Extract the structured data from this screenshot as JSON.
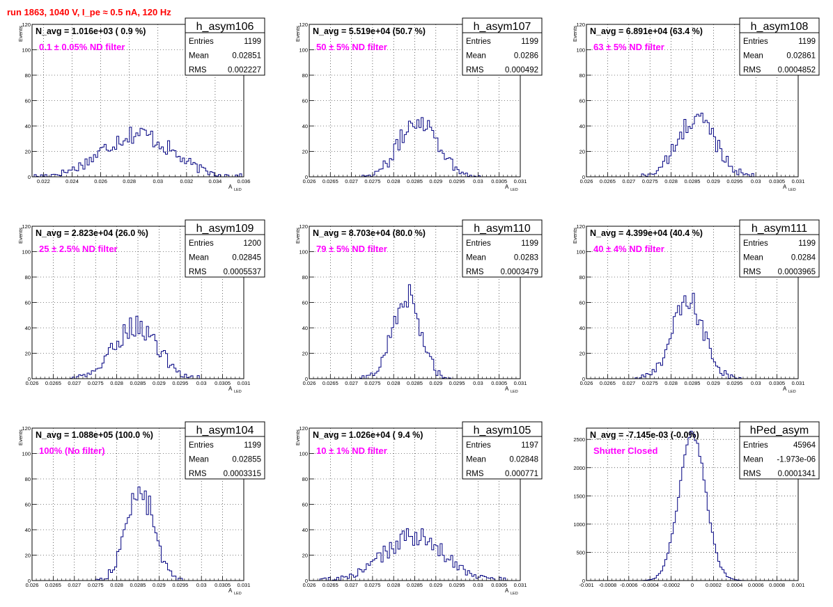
{
  "header": {
    "run_title": "run 1863,  1040 V, I_pe ≈ 0.5 nA, 120 Hz"
  },
  "colors": {
    "hist": "#000080",
    "annotation": "#ff00ff",
    "title": "#ff0000",
    "grid": "#000000"
  },
  "chart_data": [
    {
      "type": "histogram",
      "hist_name": "h_asym106",
      "navg": "N_avg = 1.016e+03 ( 0.9 %)",
      "filter": "0.1 ± 0.05% ND filter",
      "stats": [
        {
          "label": "Entries",
          "value": "1199"
        },
        {
          "label": "Mean",
          "value": "0.02851"
        },
        {
          "label": "RMS",
          "value": "0.002227"
        }
      ],
      "xlabel": "A",
      "xlabel_sub": "LED",
      "ylabel": "Events",
      "xlim": [
        0.0212,
        0.036
      ],
      "ylim": [
        0,
        120
      ],
      "xticks": [
        0.022,
        0.024,
        0.026,
        0.028,
        0.03,
        0.032,
        0.034,
        0.036
      ],
      "xtick_labels": [
        "0.022",
        "0.024",
        "0.026",
        "0.028",
        "0.03",
        "0.032",
        "0.034",
        "0.036"
      ],
      "yticks": [
        20,
        40,
        60,
        80,
        100,
        120
      ],
      "ytick_labels": [
        "20",
        "40",
        "60",
        "80",
        "100",
        "120"
      ],
      "dist": {
        "mean": 0.02851,
        "sd": 0.0024,
        "peak": 34
      },
      "grid": true
    },
    {
      "type": "histogram",
      "hist_name": "h_asym107",
      "navg": "N_avg = 5.519e+04 (50.7 %)",
      "filter": "50 ± 5% ND filter",
      "stats": [
        {
          "label": "Entries",
          "value": "1199"
        },
        {
          "label": "Mean",
          "value": "0.0286"
        },
        {
          "label": "RMS",
          "value": "0.000492"
        }
      ],
      "xlabel": "A",
      "xlabel_sub": "LED",
      "ylabel": "Events",
      "xlim": [
        0.026,
        0.031
      ],
      "ylim": [
        0,
        120
      ],
      "xticks": [
        0.026,
        0.0265,
        0.027,
        0.0275,
        0.028,
        0.0285,
        0.029,
        0.0295,
        0.03,
        0.0305,
        0.031
      ],
      "xtick_labels": [
        "0.026",
        "0.0265",
        "0.027",
        "0.0275",
        "0.028",
        "0.0285",
        "0.029",
        "0.0295",
        "0.03",
        "0.0305",
        "0.031"
      ],
      "yticks": [
        20,
        40,
        60,
        80,
        100,
        120
      ],
      "ytick_labels": [
        "20",
        "40",
        "60",
        "80",
        "100",
        "120"
      ],
      "dist": {
        "mean": 0.0286,
        "sd": 0.00045,
        "peak": 46
      },
      "grid": true
    },
    {
      "type": "histogram",
      "hist_name": "h_asym108",
      "navg": "N_avg = 6.891e+04 (63.4 %)",
      "filter": "63 ± 5% ND filter",
      "stats": [
        {
          "label": "Entries",
          "value": "1199"
        },
        {
          "label": "Mean",
          "value": "0.02861"
        },
        {
          "label": "RMS",
          "value": "0.0004852"
        }
      ],
      "xlabel": "A",
      "xlabel_sub": "LED",
      "ylabel": "Events",
      "xlim": [
        0.026,
        0.031
      ],
      "ylim": [
        0,
        120
      ],
      "xticks": [
        0.026,
        0.0265,
        0.027,
        0.0275,
        0.028,
        0.0285,
        0.029,
        0.0295,
        0.03,
        0.0305,
        0.031
      ],
      "xtick_labels": [
        "0.026",
        "0.0265",
        "0.027",
        "0.0275",
        "0.028",
        "0.0285",
        "0.029",
        "0.0295",
        "0.03",
        "0.0305",
        "0.031"
      ],
      "yticks": [
        20,
        40,
        60,
        80,
        100,
        120
      ],
      "ytick_labels": [
        "20",
        "40",
        "60",
        "80",
        "100",
        "120"
      ],
      "dist": {
        "mean": 0.02861,
        "sd": 0.00045,
        "peak": 46
      },
      "grid": true
    },
    {
      "type": "histogram",
      "hist_name": "h_asym109",
      "navg": "N_avg = 2.823e+04 (26.0 %)",
      "filter": "25 ± 2.5% ND filter",
      "stats": [
        {
          "label": "Entries",
          "value": "1200"
        },
        {
          "label": "Mean",
          "value": "0.02845"
        },
        {
          "label": "RMS",
          "value": "0.0005537"
        }
      ],
      "xlabel": "A",
      "xlabel_sub": "LED",
      "ylabel": "Events",
      "xlim": [
        0.026,
        0.031
      ],
      "ylim": [
        0,
        120
      ],
      "xticks": [
        0.026,
        0.0265,
        0.027,
        0.0275,
        0.028,
        0.0285,
        0.029,
        0.0295,
        0.03,
        0.0305,
        0.031
      ],
      "xtick_labels": [
        "0.026",
        "0.0265",
        "0.027",
        "0.0275",
        "0.028",
        "0.0285",
        "0.029",
        "0.0295",
        "0.03",
        "0.0305",
        "0.031"
      ],
      "yticks": [
        20,
        40,
        60,
        80,
        100,
        120
      ],
      "ytick_labels": [
        "20",
        "40",
        "60",
        "80",
        "100",
        "120"
      ],
      "dist": {
        "mean": 0.02845,
        "sd": 0.0005,
        "peak": 42
      },
      "grid": true
    },
    {
      "type": "histogram",
      "hist_name": "h_asym110",
      "navg": "N_avg = 8.703e+04 (80.0 %)",
      "filter": "79 ± 5% ND filter",
      "stats": [
        {
          "label": "Entries",
          "value": "1199"
        },
        {
          "label": "Mean",
          "value": "0.0283"
        },
        {
          "label": "RMS",
          "value": "0.0003479"
        }
      ],
      "xlabel": "A",
      "xlabel_sub": "LED",
      "ylabel": "Events",
      "xlim": [
        0.026,
        0.031
      ],
      "ylim": [
        0,
        120
      ],
      "xticks": [
        0.026,
        0.0265,
        0.027,
        0.0275,
        0.028,
        0.0285,
        0.029,
        0.0295,
        0.03,
        0.0305,
        0.031
      ],
      "xtick_labels": [
        "0.026",
        "0.0265",
        "0.027",
        "0.0275",
        "0.028",
        "0.0285",
        "0.029",
        "0.0295",
        "0.03",
        "0.0305",
        "0.031"
      ],
      "yticks": [
        20,
        40,
        60,
        80,
        100,
        120
      ],
      "ytick_labels": [
        "20",
        "40",
        "60",
        "80",
        "100",
        "120"
      ],
      "dist": {
        "mean": 0.0283,
        "sd": 0.00033,
        "peak": 66
      },
      "grid": true
    },
    {
      "type": "histogram",
      "hist_name": "h_asym111",
      "navg": "N_avg = 4.399e+04 (40.4 %)",
      "filter": "40 ± 4% ND filter",
      "stats": [
        {
          "label": "Entries",
          "value": "1199"
        },
        {
          "label": "Mean",
          "value": "0.0284"
        },
        {
          "label": "RMS",
          "value": "0.0003965"
        }
      ],
      "xlabel": "A",
      "xlabel_sub": "LED",
      "ylabel": "Events",
      "xlim": [
        0.026,
        0.031
      ],
      "ylim": [
        0,
        120
      ],
      "xticks": [
        0.026,
        0.0265,
        0.027,
        0.0275,
        0.028,
        0.0285,
        0.029,
        0.0295,
        0.03,
        0.0305,
        0.031
      ],
      "xtick_labels": [
        "0.026",
        "0.0265",
        "0.027",
        "0.0275",
        "0.028",
        "0.0285",
        "0.029",
        "0.0295",
        "0.03",
        "0.0305",
        "0.031"
      ],
      "yticks": [
        20,
        40,
        60,
        80,
        100,
        120
      ],
      "ytick_labels": [
        "20",
        "40",
        "60",
        "80",
        "100",
        "120"
      ],
      "dist": {
        "mean": 0.0284,
        "sd": 0.00038,
        "peak": 60
      },
      "grid": true
    },
    {
      "type": "histogram",
      "hist_name": "h_asym104",
      "navg": "N_avg = 1.088e+05 (100.0 %)",
      "filter": "100% (No filter)",
      "stats": [
        {
          "label": "Entries",
          "value": "1199"
        },
        {
          "label": "Mean",
          "value": "0.02855"
        },
        {
          "label": "RMS",
          "value": "0.0003315"
        }
      ],
      "xlabel": "A",
      "xlabel_sub": "LED",
      "ylabel": "Events",
      "xlim": [
        0.026,
        0.031
      ],
      "ylim": [
        0,
        120
      ],
      "xticks": [
        0.026,
        0.0265,
        0.027,
        0.0275,
        0.028,
        0.0285,
        0.029,
        0.0295,
        0.03,
        0.0305,
        0.031
      ],
      "xtick_labels": [
        "0.026",
        "0.0265",
        "0.027",
        "0.0275",
        "0.028",
        "0.0285",
        "0.029",
        "0.0295",
        "0.03",
        "0.0305",
        "0.031"
      ],
      "yticks": [
        20,
        40,
        60,
        80,
        100,
        120
      ],
      "ytick_labels": [
        "20",
        "40",
        "60",
        "80",
        "100",
        "120"
      ],
      "dist": {
        "mean": 0.02855,
        "sd": 0.00032,
        "peak": 72
      },
      "grid": true
    },
    {
      "type": "histogram",
      "hist_name": "h_asym105",
      "navg": "N_avg = 1.026e+04 ( 9.4 %)",
      "filter": "10 ± 1% ND filter",
      "stats": [
        {
          "label": "Entries",
          "value": "1197"
        },
        {
          "label": "Mean",
          "value": "0.02848"
        },
        {
          "label": "RMS",
          "value": "0.000771"
        }
      ],
      "xlabel": "A",
      "xlabel_sub": "LED",
      "ylabel": "Events",
      "xlim": [
        0.026,
        0.031
      ],
      "ylim": [
        0,
        120
      ],
      "xticks": [
        0.026,
        0.0265,
        0.027,
        0.0275,
        0.028,
        0.0285,
        0.029,
        0.0295,
        0.03,
        0.0305,
        0.031
      ],
      "xtick_labels": [
        "0.026",
        "0.0265",
        "0.027",
        "0.0275",
        "0.028",
        "0.0285",
        "0.029",
        "0.0295",
        "0.03",
        "0.0305",
        "0.031"
      ],
      "yticks": [
        20,
        40,
        60,
        80,
        100,
        120
      ],
      "ytick_labels": [
        "20",
        "40",
        "60",
        "80",
        "100",
        "120"
      ],
      "dist": {
        "mean": 0.02848,
        "sd": 0.00072,
        "peak": 34
      },
      "grid": true
    },
    {
      "type": "histogram",
      "hist_name": "hPed_asym",
      "navg": "N_avg = -7.145e-03 (-0.0%)",
      "filter": "Shutter Closed",
      "stats": [
        {
          "label": "Entries",
          "value": "45964"
        },
        {
          "label": "Mean",
          "value": "-1.973e-06"
        },
        {
          "label": "RMS",
          "value": "0.0001341"
        }
      ],
      "xlabel": "",
      "xlabel_sub": "",
      "ylabel": "",
      "xlim": [
        -0.001,
        0.001
      ],
      "ylim": [
        0,
        2700
      ],
      "xticks": [
        -0.001,
        -0.0008,
        -0.0006,
        -0.0004,
        -0.0002,
        0,
        0.0002,
        0.0004,
        0.0006,
        0.0008,
        0.001
      ],
      "xtick_labels": [
        "-0.001",
        "-0.0008",
        "-0.0006",
        "-0.0004",
        "-0.0002",
        "0",
        "0.0002",
        "0.0004",
        "0.0006",
        "0.0008",
        "0.001"
      ],
      "yticks": [
        500,
        1000,
        1500,
        2000,
        2500
      ],
      "ytick_labels": [
        "500",
        "1000",
        "1500",
        "2000",
        "2500"
      ],
      "dist": {
        "mean": 0.0,
        "sd": 0.000125,
        "peak": 2620
      },
      "grid": true
    }
  ]
}
